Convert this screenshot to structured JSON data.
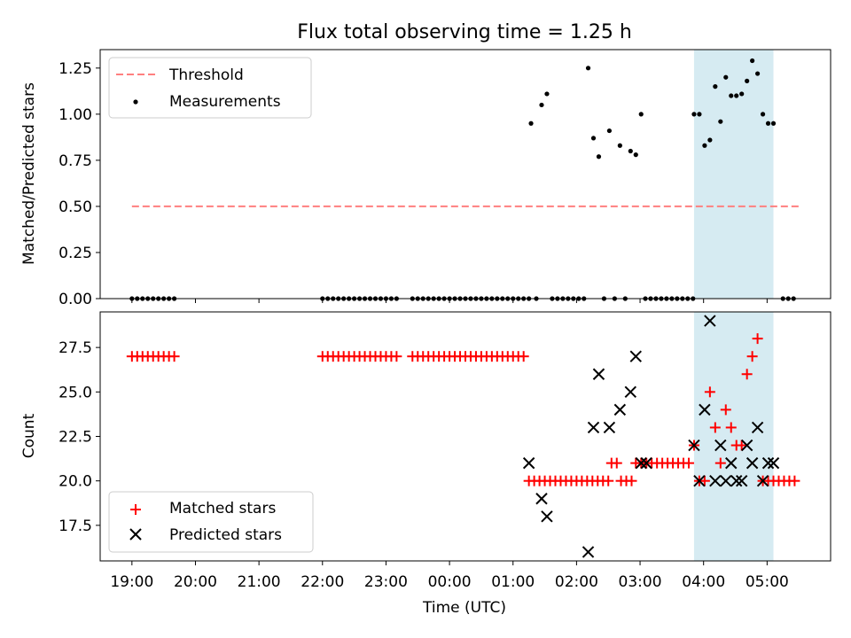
{
  "title": "Flux total observing time = 1.25 h",
  "xlabel": "Time (UTC)",
  "x_ticks": [
    {
      "t": "19:00",
      "label": "19:00"
    },
    {
      "t": "20:00",
      "label": "20:00"
    },
    {
      "t": "21:00",
      "label": "21:00"
    },
    {
      "t": "22:00",
      "label": "22:00"
    },
    {
      "t": "23:00",
      "label": "23:00"
    },
    {
      "t": "00:00",
      "label": "00:00"
    },
    {
      "t": "01:00",
      "label": "01:00"
    },
    {
      "t": "02:00",
      "label": "02:00"
    },
    {
      "t": "03:00",
      "label": "03:00"
    },
    {
      "t": "04:00",
      "label": "04:00"
    },
    {
      "t": "05:00",
      "label": "05:00"
    }
  ],
  "chart_data": [
    {
      "type": "scatter",
      "ylabel": "Matched/Predicted stars",
      "xlim": [
        "18:30",
        "06:00"
      ],
      "ylim": [
        0,
        1.35
      ],
      "yticks": [
        {
          "v": 0.0,
          "label": "0.00"
        },
        {
          "v": 0.25,
          "label": "0.25"
        },
        {
          "v": 0.5,
          "label": "0.50"
        },
        {
          "v": 0.75,
          "label": "0.75"
        },
        {
          "v": 1.0,
          "label": "1.00"
        },
        {
          "v": 1.25,
          "label": "1.25"
        }
      ],
      "highlight_span": {
        "start": "03:51",
        "end": "05:06",
        "color": "#add8e6"
      },
      "threshold": {
        "name": "Threshold",
        "value": 0.5,
        "from": "19:00",
        "to": "05:30",
        "color": "#ff7f7f",
        "style": "dashed"
      },
      "series": [
        {
          "name": "Measurements",
          "marker": "dot",
          "color": "#000000",
          "points": [
            [
              "19:00",
              0
            ],
            [
              "19:05",
              0
            ],
            [
              "19:10",
              0
            ],
            [
              "19:15",
              0
            ],
            [
              "19:20",
              0
            ],
            [
              "19:25",
              0
            ],
            [
              "19:30",
              0
            ],
            [
              "19:35",
              0
            ],
            [
              "19:40",
              0
            ],
            [
              "22:00",
              0
            ],
            [
              "22:05",
              0
            ],
            [
              "22:10",
              0
            ],
            [
              "22:15",
              0
            ],
            [
              "22:20",
              0
            ],
            [
              "22:25",
              0
            ],
            [
              "22:30",
              0
            ],
            [
              "22:35",
              0
            ],
            [
              "22:40",
              0
            ],
            [
              "22:45",
              0
            ],
            [
              "22:50",
              0
            ],
            [
              "22:55",
              0
            ],
            [
              "23:00",
              0
            ],
            [
              "23:05",
              0
            ],
            [
              "23:10",
              0
            ],
            [
              "23:25",
              0
            ],
            [
              "23:30",
              0
            ],
            [
              "23:35",
              0
            ],
            [
              "23:40",
              0
            ],
            [
              "23:45",
              0
            ],
            [
              "23:50",
              0
            ],
            [
              "23:55",
              0
            ],
            [
              "00:00",
              0
            ],
            [
              "00:05",
              0
            ],
            [
              "00:10",
              0
            ],
            [
              "00:15",
              0
            ],
            [
              "00:20",
              0
            ],
            [
              "00:25",
              0
            ],
            [
              "00:30",
              0
            ],
            [
              "00:35",
              0
            ],
            [
              "00:40",
              0
            ],
            [
              "00:45",
              0
            ],
            [
              "00:50",
              0
            ],
            [
              "00:55",
              0
            ],
            [
              "01:00",
              0
            ],
            [
              "01:05",
              0
            ],
            [
              "01:10",
              0
            ],
            [
              "01:15",
              0
            ],
            [
              "01:17",
              0.95
            ],
            [
              "01:22",
              0
            ],
            [
              "01:27",
              1.05
            ],
            [
              "01:32",
              1.11
            ],
            [
              "01:37",
              0
            ],
            [
              "01:42",
              0
            ],
            [
              "01:47",
              0
            ],
            [
              "01:52",
              0
            ],
            [
              "01:57",
              0
            ],
            [
              "02:02",
              0
            ],
            [
              "02:07",
              0
            ],
            [
              "02:11",
              1.25
            ],
            [
              "02:16",
              0.87
            ],
            [
              "02:21",
              0.77
            ],
            [
              "02:26",
              0
            ],
            [
              "02:31",
              0.91
            ],
            [
              "02:36",
              0
            ],
            [
              "02:41",
              0.83
            ],
            [
              "02:46",
              0
            ],
            [
              "02:51",
              0.8
            ],
            [
              "02:56",
              0.78
            ],
            [
              "03:01",
              1.0
            ],
            [
              "03:05",
              0
            ],
            [
              "03:10",
              0
            ],
            [
              "03:15",
              0
            ],
            [
              "03:20",
              0
            ],
            [
              "03:25",
              0
            ],
            [
              "03:30",
              0
            ],
            [
              "03:35",
              0
            ],
            [
              "03:40",
              0
            ],
            [
              "03:45",
              0
            ],
            [
              "03:50",
              0
            ],
            [
              "03:51",
              1.0
            ],
            [
              "03:56",
              1.0
            ],
            [
              "04:01",
              0.83
            ],
            [
              "04:06",
              0.86
            ],
            [
              "04:11",
              1.15
            ],
            [
              "04:16",
              0.96
            ],
            [
              "04:21",
              1.2
            ],
            [
              "04:26",
              1.1
            ],
            [
              "04:31",
              1.1
            ],
            [
              "04:36",
              1.11
            ],
            [
              "04:41",
              1.18
            ],
            [
              "04:46",
              1.29
            ],
            [
              "04:51",
              1.22
            ],
            [
              "04:56",
              1.0
            ],
            [
              "05:01",
              0.95
            ],
            [
              "05:06",
              0.95
            ],
            [
              "05:15",
              0
            ],
            [
              "05:20",
              0
            ],
            [
              "05:25",
              0
            ]
          ]
        }
      ]
    },
    {
      "type": "scatter",
      "ylabel": "Count",
      "xlabel": "Time (UTC)",
      "xlim": [
        "18:30",
        "06:00"
      ],
      "ylim": [
        15.5,
        29.5
      ],
      "yticks": [
        {
          "v": 17.5,
          "label": "17.5"
        },
        {
          "v": 20.0,
          "label": "20.0"
        },
        {
          "v": 22.5,
          "label": "22.5"
        },
        {
          "v": 25.0,
          "label": "25.0"
        },
        {
          "v": 27.5,
          "label": "27.5"
        }
      ],
      "highlight_span": {
        "start": "03:51",
        "end": "05:06",
        "color": "#add8e6"
      },
      "series": [
        {
          "name": "Matched stars",
          "marker": "plus",
          "color": "#ff0000",
          "points": [
            [
              "19:00",
              27
            ],
            [
              "19:05",
              27
            ],
            [
              "19:10",
              27
            ],
            [
              "19:15",
              27
            ],
            [
              "19:20",
              27
            ],
            [
              "19:25",
              27
            ],
            [
              "19:30",
              27
            ],
            [
              "19:35",
              27
            ],
            [
              "19:40",
              27
            ],
            [
              "22:00",
              27
            ],
            [
              "22:05",
              27
            ],
            [
              "22:10",
              27
            ],
            [
              "22:15",
              27
            ],
            [
              "22:20",
              27
            ],
            [
              "22:25",
              27
            ],
            [
              "22:30",
              27
            ],
            [
              "22:35",
              27
            ],
            [
              "22:40",
              27
            ],
            [
              "22:45",
              27
            ],
            [
              "22:50",
              27
            ],
            [
              "22:55",
              27
            ],
            [
              "23:00",
              27
            ],
            [
              "23:05",
              27
            ],
            [
              "23:10",
              27
            ],
            [
              "23:25",
              27
            ],
            [
              "23:30",
              27
            ],
            [
              "23:35",
              27
            ],
            [
              "23:40",
              27
            ],
            [
              "23:45",
              27
            ],
            [
              "23:50",
              27
            ],
            [
              "23:55",
              27
            ],
            [
              "00:00",
              27
            ],
            [
              "00:05",
              27
            ],
            [
              "00:10",
              27
            ],
            [
              "00:15",
              27
            ],
            [
              "00:20",
              27
            ],
            [
              "00:25",
              27
            ],
            [
              "00:30",
              27
            ],
            [
              "00:35",
              27
            ],
            [
              "00:40",
              27
            ],
            [
              "00:45",
              27
            ],
            [
              "00:50",
              27
            ],
            [
              "00:55",
              27
            ],
            [
              "01:00",
              27
            ],
            [
              "01:05",
              27
            ],
            [
              "01:10",
              27
            ],
            [
              "01:15",
              20
            ],
            [
              "01:20",
              20
            ],
            [
              "01:25",
              20
            ],
            [
              "01:30",
              20
            ],
            [
              "01:35",
              20
            ],
            [
              "01:40",
              20
            ],
            [
              "01:45",
              20
            ],
            [
              "01:50",
              20
            ],
            [
              "01:55",
              20
            ],
            [
              "02:00",
              20
            ],
            [
              "02:05",
              20
            ],
            [
              "02:10",
              20
            ],
            [
              "02:15",
              20
            ],
            [
              "02:20",
              20
            ],
            [
              "02:25",
              20
            ],
            [
              "02:30",
              20
            ],
            [
              "02:33",
              21
            ],
            [
              "02:38",
              21
            ],
            [
              "02:42",
              20
            ],
            [
              "02:47",
              20
            ],
            [
              "02:52",
              20
            ],
            [
              "02:56",
              21
            ],
            [
              "03:01",
              21
            ],
            [
              "03:06",
              21
            ],
            [
              "03:11",
              21
            ],
            [
              "03:16",
              21
            ],
            [
              "03:21",
              21
            ],
            [
              "03:26",
              21
            ],
            [
              "03:31",
              21
            ],
            [
              "03:36",
              21
            ],
            [
              "03:41",
              21
            ],
            [
              "03:46",
              21
            ],
            [
              "03:51",
              22
            ],
            [
              "03:56",
              20
            ],
            [
              "04:01",
              20
            ],
            [
              "04:06",
              25
            ],
            [
              "04:11",
              23
            ],
            [
              "04:16",
              21
            ],
            [
              "04:21",
              24
            ],
            [
              "04:26",
              23
            ],
            [
              "04:31",
              22
            ],
            [
              "04:36",
              22
            ],
            [
              "04:41",
              26
            ],
            [
              "04:46",
              27
            ],
            [
              "04:51",
              28
            ],
            [
              "04:56",
              20
            ],
            [
              "05:01",
              20
            ],
            [
              "05:06",
              20
            ],
            [
              "05:11",
              20
            ],
            [
              "05:16",
              20
            ],
            [
              "05:21",
              20
            ],
            [
              "05:26",
              20
            ]
          ]
        },
        {
          "name": "Predicted stars",
          "marker": "x",
          "color": "#000000",
          "points": [
            [
              "01:15",
              21
            ],
            [
              "01:27",
              19
            ],
            [
              "01:32",
              18
            ],
            [
              "02:11",
              16
            ],
            [
              "02:16",
              23
            ],
            [
              "02:21",
              26
            ],
            [
              "02:31",
              23
            ],
            [
              "02:41",
              24
            ],
            [
              "02:51",
              25
            ],
            [
              "02:56",
              27
            ],
            [
              "03:01",
              21
            ],
            [
              "03:06",
              21
            ],
            [
              "03:51",
              22
            ],
            [
              "03:56",
              20
            ],
            [
              "04:01",
              24
            ],
            [
              "04:06",
              29
            ],
            [
              "04:11",
              20
            ],
            [
              "04:16",
              22
            ],
            [
              "04:21",
              20
            ],
            [
              "04:26",
              21
            ],
            [
              "04:31",
              20
            ],
            [
              "04:36",
              20
            ],
            [
              "04:41",
              22
            ],
            [
              "04:46",
              21
            ],
            [
              "04:51",
              23
            ],
            [
              "04:56",
              20
            ],
            [
              "05:01",
              21
            ],
            [
              "05:06",
              21
            ]
          ]
        }
      ]
    }
  ]
}
